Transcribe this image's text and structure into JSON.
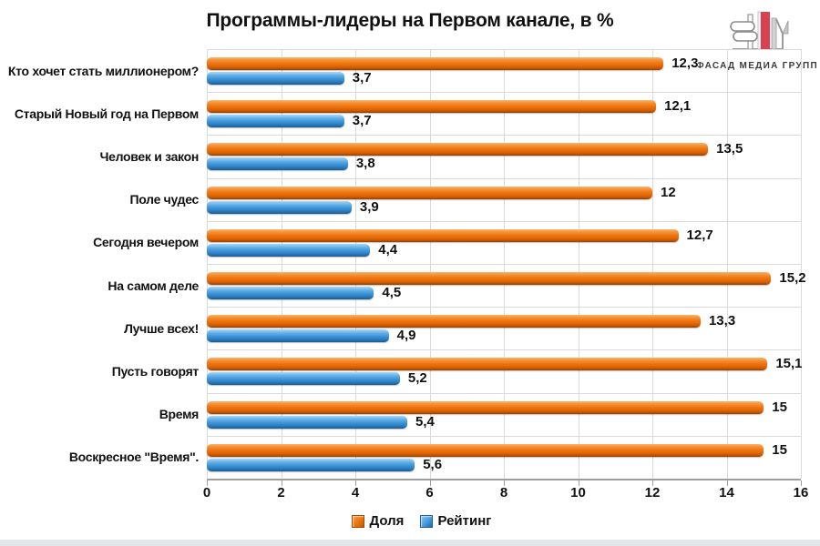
{
  "logo": {
    "text": "ФАСАД МЕДИА ГРУПП",
    "accent_color": "#d8414f"
  },
  "chart_data": {
    "type": "bar",
    "orientation": "horizontal",
    "title": "Программы-лидеры на Первом канале, в %",
    "categories": [
      "Кто хочет стать миллионером?",
      "Старый Новый год на Первом",
      "Человек и закон",
      "Поле чудес",
      "Сегодня вечером",
      "На самом деле",
      "Лучше всех!",
      "Пусть говорят",
      "Время",
      "Воскресное \"Время\"."
    ],
    "series": [
      {
        "name": "Доля",
        "color": "#ED7712",
        "values": [
          12.3,
          12.1,
          13.5,
          12,
          12.7,
          15.2,
          13.3,
          15.1,
          15,
          15
        ],
        "labels": [
          "12,3",
          "12,1",
          "13,5",
          "12",
          "12,7",
          "15,2",
          "13,3",
          "15,1",
          "15",
          "15"
        ]
      },
      {
        "name": "Рейтинг",
        "color": "#3F97DA",
        "values": [
          3.7,
          3.7,
          3.8,
          3.9,
          4.4,
          4.5,
          4.9,
          5.2,
          5.4,
          5.6
        ],
        "labels": [
          "3,7",
          "3,7",
          "3,8",
          "3,9",
          "4,4",
          "4,5",
          "4,9",
          "5,2",
          "5,4",
          "5,6"
        ]
      }
    ],
    "xlim": [
      0,
      16
    ],
    "x_ticks": [
      "0",
      "2",
      "4",
      "6",
      "8",
      "10",
      "12",
      "14",
      "16"
    ],
    "grid": true,
    "legend_position": "bottom",
    "value_decimal_separator": ","
  }
}
